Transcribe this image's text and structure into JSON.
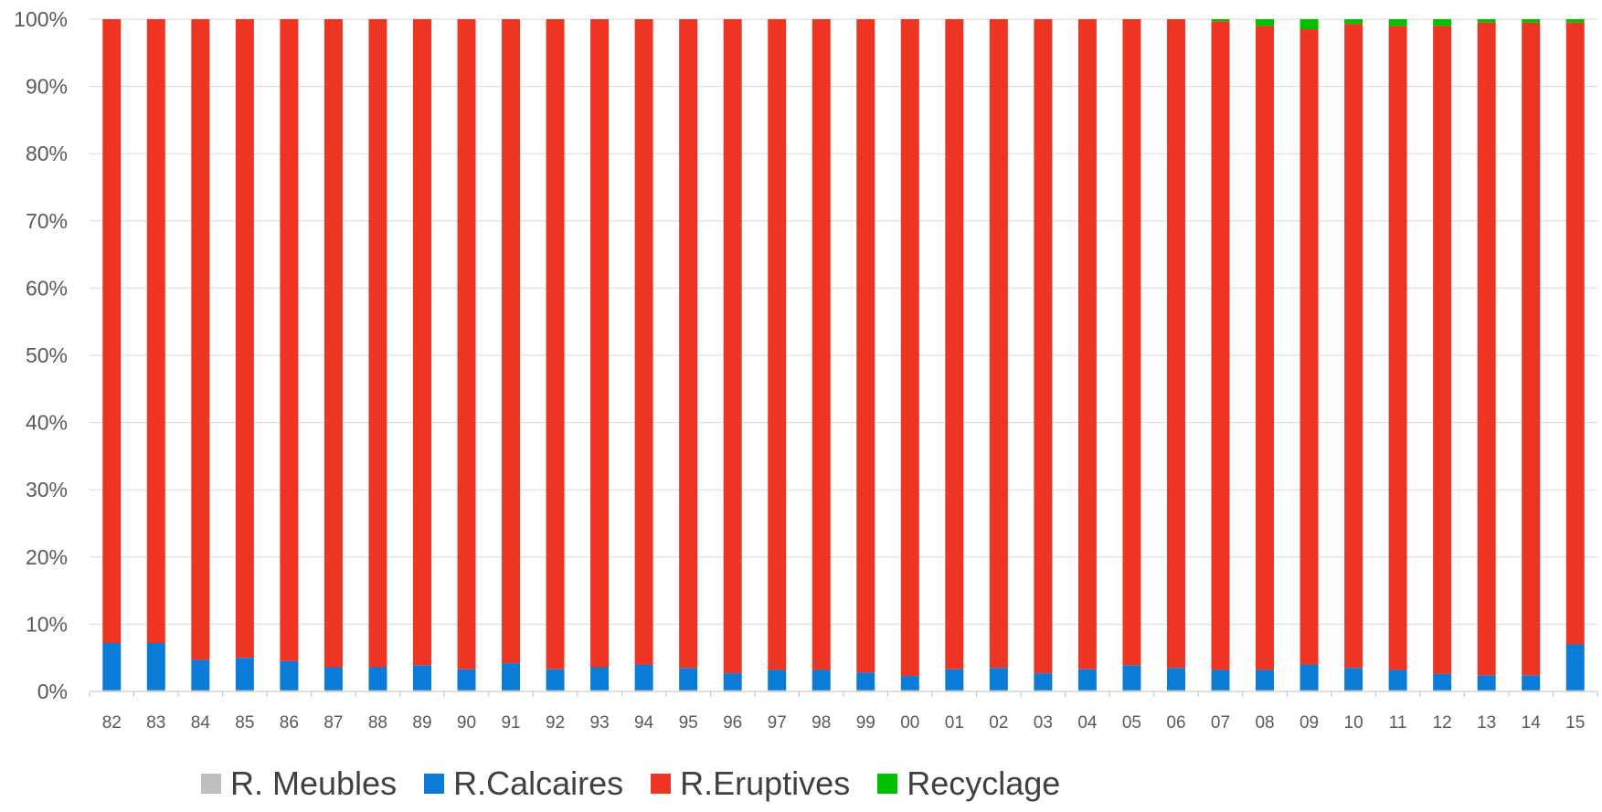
{
  "chart_data": {
    "type": "bar",
    "stacked": true,
    "percent_stacked": true,
    "categories": [
      "82",
      "83",
      "84",
      "85",
      "86",
      "87",
      "88",
      "89",
      "90",
      "91",
      "92",
      "93",
      "94",
      "95",
      "96",
      "97",
      "98",
      "99",
      "00",
      "01",
      "02",
      "03",
      "04",
      "05",
      "06",
      "07",
      "08",
      "09",
      "10",
      "11",
      "12",
      "13",
      "14",
      "15"
    ],
    "series": [
      {
        "name": "R. Meubles",
        "color": "#bfbfbf",
        "values": [
          0.2,
          0.2,
          0.2,
          0.2,
          0.2,
          0.2,
          0.2,
          0.2,
          0.2,
          0.2,
          0.2,
          0.2,
          0.2,
          0.2,
          0.2,
          0.2,
          0.2,
          0.2,
          0.2,
          0.2,
          0.2,
          0.2,
          0.2,
          0.2,
          0.2,
          0.2,
          0.2,
          0.2,
          0.2,
          0.2,
          0.2,
          0.2,
          0.2,
          0.2
        ]
      },
      {
        "name": "R.Calcaires",
        "color": "#0a7bd6",
        "values": [
          7.0,
          7.0,
          4.5,
          4.8,
          4.3,
          3.4,
          3.4,
          3.7,
          3.1,
          4.0,
          3.1,
          3.4,
          3.8,
          3.3,
          2.5,
          3.0,
          3.0,
          2.6,
          2.1,
          3.1,
          3.3,
          2.5,
          3.1,
          3.7,
          3.3,
          3.0,
          3.0,
          3.8,
          3.3,
          3.0,
          2.4,
          2.2,
          2.2,
          6.8
        ]
      },
      {
        "name": "R.Eruptives",
        "color": "#ee3524",
        "values": [
          92.8,
          92.8,
          95.3,
          95.0,
          95.5,
          96.4,
          96.4,
          96.1,
          96.7,
          95.8,
          96.7,
          96.4,
          96.0,
          96.5,
          97.3,
          96.8,
          96.8,
          97.2,
          97.7,
          96.7,
          96.5,
          97.3,
          96.7,
          96.1,
          96.5,
          96.5,
          95.8,
          94.5,
          95.8,
          95.8,
          96.4,
          97.1,
          97.1,
          92.5
        ]
      },
      {
        "name": "Recyclage",
        "color": "#00c000",
        "values": [
          0,
          0,
          0,
          0,
          0,
          0,
          0,
          0,
          0,
          0,
          0,
          0,
          0,
          0,
          0,
          0,
          0,
          0,
          0,
          0,
          0,
          0,
          0,
          0,
          0,
          0.3,
          1.0,
          1.5,
          0.7,
          1.0,
          1.0,
          0.5,
          0.5,
          0.5
        ]
      }
    ],
    "y_ticks": [
      "0%",
      "10%",
      "20%",
      "30%",
      "40%",
      "50%",
      "60%",
      "70%",
      "80%",
      "90%",
      "100%"
    ],
    "ylim": [
      0,
      100
    ],
    "grid": true,
    "legend_position": "bottom-left",
    "title": "",
    "xlabel": "",
    "ylabel": ""
  }
}
